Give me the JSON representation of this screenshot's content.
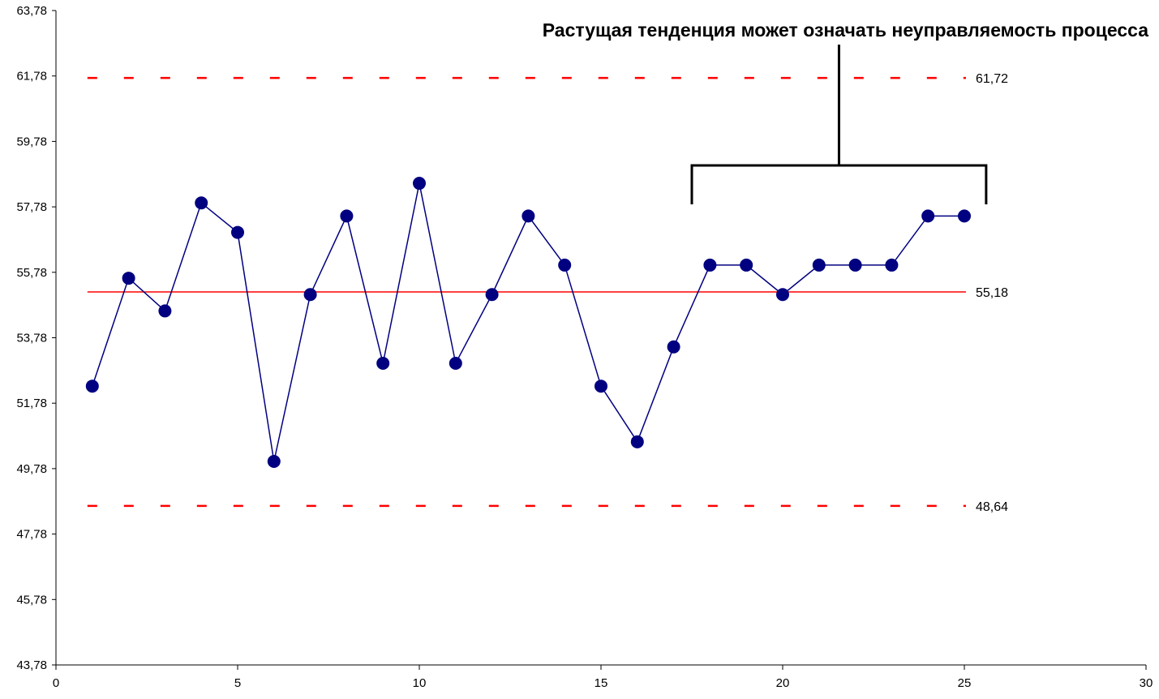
{
  "chart_data": {
    "type": "line",
    "x": [
      1,
      2,
      3,
      4,
      5,
      6,
      7,
      8,
      9,
      10,
      11,
      12,
      13,
      14,
      15,
      16,
      17,
      18,
      19,
      20,
      21,
      22,
      23,
      24,
      25
    ],
    "series": [
      {
        "values": [
          52.3,
          55.6,
          54.6,
          57.9,
          57.0,
          50.0,
          55.1,
          57.5,
          53.0,
          58.5,
          53.0,
          55.1,
          57.5,
          56.0,
          52.3,
          50.6,
          53.5,
          56.0,
          56.0,
          55.1,
          56.0,
          56.0,
          56.0,
          57.5,
          57.5
        ],
        "color": "#000080"
      }
    ],
    "xlim": [
      0,
      30
    ],
    "ylim": [
      43.78,
      63.78
    ],
    "x_ticks": [
      0,
      5,
      10,
      15,
      20,
      25,
      30
    ],
    "x_tick_labels": [
      "0",
      "5",
      "10",
      "15",
      "20",
      "25",
      "30"
    ],
    "y_ticks": [
      43.78,
      45.78,
      47.78,
      49.78,
      51.78,
      53.78,
      55.78,
      57.78,
      59.78,
      61.78,
      63.78
    ],
    "y_tick_labels": [
      "43,78",
      "45,78",
      "47,78",
      "49,78",
      "51,78",
      "53,78",
      "55,78",
      "57,78",
      "59,78",
      "61,78",
      "63,78"
    ],
    "grid": false,
    "reference_lines": [
      {
        "name": "ucl",
        "value": 61.72,
        "label": "61,72",
        "style": "dashed",
        "color": "#ff0000"
      },
      {
        "name": "center",
        "value": 55.18,
        "label": "55,18",
        "style": "solid",
        "color": "#ff0000"
      },
      {
        "name": "lcl",
        "value": 48.64,
        "label": "48,64",
        "style": "dashed",
        "color": "#ff0000"
      }
    ],
    "reference_line_x_range": [
      1,
      25
    ],
    "annotation": {
      "text": "Растущая тенденция может означать неуправляемость процесса",
      "bracket_x_range": [
        17.5,
        25.6
      ]
    }
  }
}
